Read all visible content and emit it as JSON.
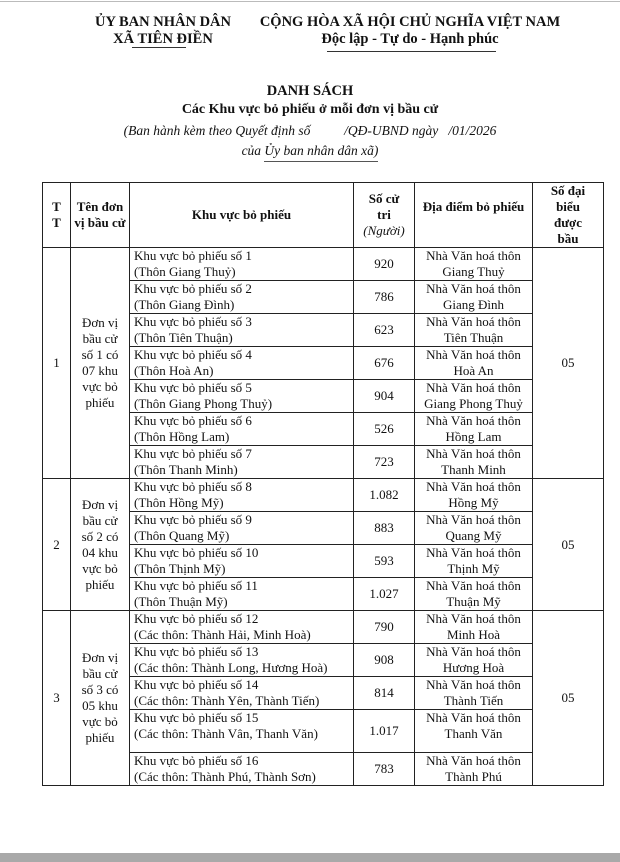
{
  "header": {
    "org_line1": "ỦY BAN NHÂN DÂN",
    "org_line2": "XÃ TIÊN ĐIỀN",
    "nation_line1": "CỘNG HÒA XÃ HỘI CHỦ NGHĨA VIỆT NAM",
    "nation_line2": "Độc lập - Tự do - Hạnh phúc"
  },
  "doc": {
    "title": "DANH SÁCH",
    "subtitle": "Các Khu vực bỏ phiếu ở mỗi đơn vị bầu cử",
    "note_line1": "(Ban hành kèm theo Quyết định số          /QĐ-UBND ngày   /01/2026",
    "note_line2": "của Ủy ban nhân dân xã)"
  },
  "table": {
    "headers": {
      "tt": "T T",
      "unit": "Tên đơn vị bầu cử",
      "area": "Khu vực bỏ phiếu",
      "voters": "Số cử tri",
      "voters_unit": "(Người)",
      "place": "Địa điểm bỏ phiếu",
      "delegates": "Số đại biểu được bầu"
    },
    "groups": [
      {
        "tt": "1",
        "unit": "Đơn vị bầu cử số 1 có 07 khu vực bỏ phiếu",
        "delegates": "05",
        "rows": [
          {
            "area": "Khu vực bỏ phiếu số 1",
            "sub": "(Thôn Giang Thuỷ)",
            "voters": "920",
            "place1": "Nhà Văn hoá thôn",
            "place2": "Giang Thuỷ"
          },
          {
            "area": "Khu vực bỏ phiếu số 2",
            "sub": "(Thôn Giang Đình)",
            "voters": "786",
            "place1": "Nhà Văn hoá thôn",
            "place2": "Giang Đình"
          },
          {
            "area": "Khu vực bỏ phiếu số 3",
            "sub": "(Thôn Tiên Thuận)",
            "voters": "623",
            "place1": "Nhà Văn hoá thôn",
            "place2": "Tiên Thuận"
          },
          {
            "area": "Khu vực bỏ phiếu số 4",
            "sub": "(Thôn Hoà An)",
            "voters": "676",
            "place1": "Nhà Văn hoá thôn",
            "place2": "Hoà An"
          },
          {
            "area": "Khu vực bỏ phiếu số 5",
            "sub": "(Thôn Giang Phong Thuỷ)",
            "voters": "904",
            "place1": "Nhà Văn hoá thôn",
            "place2": "Giang Phong Thuỷ"
          },
          {
            "area": "Khu vực bỏ phiếu số 6",
            "sub": "(Thôn Hồng Lam)",
            "voters": "526",
            "place1": "Nhà Văn hoá thôn",
            "place2": "Hồng Lam"
          },
          {
            "area": "Khu vực bỏ phiếu số 7",
            "sub": "(Thôn Thanh Minh)",
            "voters": "723",
            "place1": "Nhà Văn hoá thôn",
            "place2": "Thanh Minh"
          }
        ]
      },
      {
        "tt": "2",
        "unit": "Đơn vị bầu cử số 2 có 04 khu vực bỏ phiếu",
        "delegates": "05",
        "rows": [
          {
            "area": "Khu vực bỏ phiếu số 8",
            "sub": "(Thôn Hồng Mỹ)",
            "voters": "1.082",
            "place1": "Nhà Văn hoá thôn",
            "place2": "Hồng Mỹ"
          },
          {
            "area": "Khu vực bỏ phiếu số 9",
            "sub": "(Thôn Quang Mỹ)",
            "voters": "883",
            "place1": "Nhà Văn hoá thôn",
            "place2": "Quang Mỹ"
          },
          {
            "area": "Khu vực bỏ phiếu số 10",
            "sub": "(Thôn Thịnh Mỹ)",
            "voters": "593",
            "place1": "Nhà Văn hoá thôn",
            "place2": "Thịnh Mỹ"
          },
          {
            "area": "Khu vực bỏ phiếu số 11",
            "sub": "(Thôn Thuận Mỹ)",
            "voters": "1.027",
            "place1": "Nhà Văn hoá thôn",
            "place2": "Thuận Mỹ"
          }
        ]
      },
      {
        "tt": "3",
        "unit": "Đơn vị bầu cử số 3 có 05 khu vực bỏ phiếu",
        "delegates": "05",
        "rows": [
          {
            "area": "Khu vực bỏ phiếu số 12",
            "sub": "(Các thôn: Thành Hải, Minh Hoà)",
            "voters": "790",
            "place1": "Nhà Văn hoá thôn",
            "place2": "Minh Hoà"
          },
          {
            "area": "Khu vực bỏ phiếu số 13",
            "sub": "(Các thôn: Thành Long, Hương Hoà)",
            "voters": "908",
            "place1": "Nhà Văn hoá thôn",
            "place2": "Hương Hoà"
          },
          {
            "area": "Khu vực bỏ phiếu số 14",
            "sub": "(Các thôn: Thành Yên, Thành Tiến)",
            "voters": "814",
            "place1": "Nhà Văn hoá thôn",
            "place2": "Thành Tiến"
          },
          {
            "area": "Khu vực bỏ phiếu số 15",
            "sub": "(Các thôn: Thành Vân, Thanh Văn)",
            "voters": "1.017",
            "place1": "Nhà Văn hoá thôn",
            "place2": "Thanh Văn"
          },
          {
            "area": "Khu vực bỏ phiếu số 16",
            "sub": "(Các thôn: Thành Phú, Thành Sơn)",
            "voters": "783",
            "place1": "Nhà Văn hoá thôn",
            "place2": "Thành Phú"
          }
        ]
      }
    ]
  }
}
